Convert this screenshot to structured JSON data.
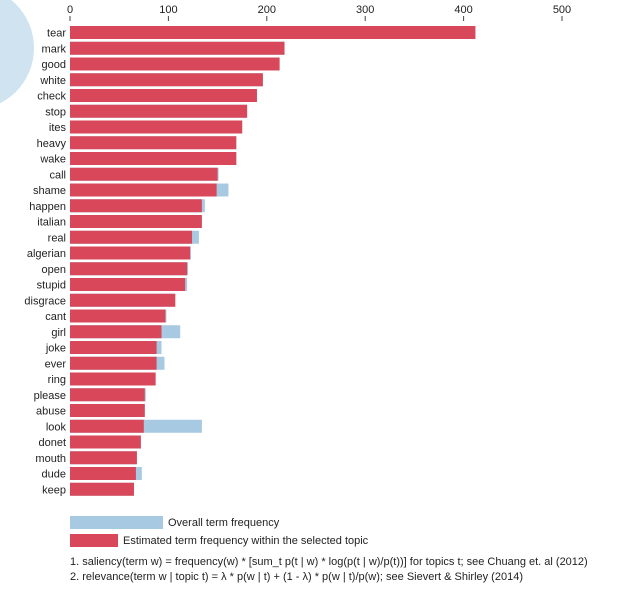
{
  "chart_data": {
    "type": "bar",
    "orientation": "horizontal",
    "x_ticks": [
      0,
      100,
      200,
      300,
      400,
      500
    ],
    "xlim": [
      0,
      500
    ],
    "categories": [
      "tear",
      "mark",
      "good",
      "white",
      "check",
      "stop",
      "ites",
      "heavy",
      "wake",
      "call",
      "shame",
      "happen",
      "italian",
      "real",
      "algerian",
      "open",
      "stupid",
      "disgrace",
      "cant",
      "girl",
      "joke",
      "ever",
      "ring",
      "please",
      "abuse",
      "look",
      "donet",
      "mouth",
      "dude",
      "keep"
    ],
    "series": [
      {
        "name": "Overall term frequency",
        "color": "#a8c9e2",
        "values": [
          412,
          218,
          213,
          196,
          190,
          180,
          175,
          169,
          169,
          151,
          161,
          137,
          134,
          131,
          123,
          120,
          119,
          107,
          98,
          112,
          93,
          96,
          87,
          77,
          76,
          134,
          72,
          68,
          73,
          65
        ]
      },
      {
        "name": "Estimated term frequency within the selected topic",
        "color": "#d8485a",
        "values": [
          412,
          218,
          213,
          196,
          190,
          180,
          175,
          169,
          169,
          150,
          149,
          134,
          134,
          124,
          122,
          119,
          117,
          107,
          97,
          93,
          88,
          88,
          87,
          76,
          76,
          75,
          72,
          68,
          67,
          65
        ]
      }
    ],
    "legend": {
      "overall_label": "Overall term frequency",
      "topic_label": "Estimated term frequency within the selected topic"
    },
    "footnotes": [
      "1. saliency(term w) = frequency(w) * [sum_t p(t | w) * log(p(t | w)/p(t))] for topics t; see Chuang et. al (2012)",
      "2. relevance(term w | topic t) = λ * p(w | t) + (1 - λ) * p(w | t)/p(w); see Sievert & Shirley (2014)"
    ],
    "decor_circle_color": "#cfe3f0"
  }
}
